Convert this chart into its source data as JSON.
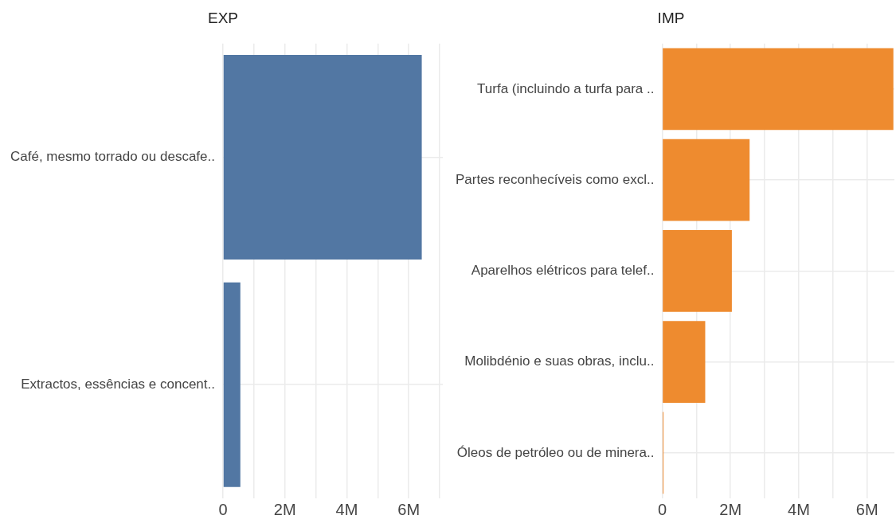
{
  "chart_data": [
    {
      "type": "bar",
      "orientation": "horizontal",
      "title": "EXP",
      "categories": [
        "Café, mesmo torrado ou descafe..",
        "Extractos, essências e concent.."
      ],
      "values": [
        6420000,
        560000
      ],
      "color": "#5277a3",
      "xlim": [
        0,
        7100000
      ],
      "xticks": [
        0,
        {
          "value": 1000000,
          "label": null
        },
        {
          "value": 2000000,
          "label": "2M"
        },
        {
          "value": 3000000,
          "label": null
        },
        {
          "value": 4000000,
          "label": "4M"
        },
        {
          "value": 5000000,
          "label": null
        },
        {
          "value": 6000000,
          "label": "6M"
        },
        {
          "value": 7000000,
          "label": null
        }
      ],
      "grid": true,
      "legend": false
    },
    {
      "type": "bar",
      "orientation": "horizontal",
      "title": "IMP",
      "categories": [
        "Turfa (incluindo a turfa para ..",
        "Partes reconhecíveis como excl..",
        "Aparelhos elétricos para telef..",
        "Molibdénio e suas obras, inclu..",
        "Óleos de petróleo ou de minera.."
      ],
      "values": [
        6770000,
        2560000,
        2040000,
        1260000,
        40000
      ],
      "color": "#ee8b2f",
      "xlim": [
        0,
        6800000
      ],
      "xticks": [
        0,
        {
          "value": 1000000,
          "label": null
        },
        {
          "value": 2000000,
          "label": "2M"
        },
        {
          "value": 3000000,
          "label": null
        },
        {
          "value": 4000000,
          "label": "4M"
        },
        {
          "value": 5000000,
          "label": null
        },
        {
          "value": 6000000,
          "label": "6M"
        }
      ],
      "grid": true,
      "legend": false
    }
  ]
}
